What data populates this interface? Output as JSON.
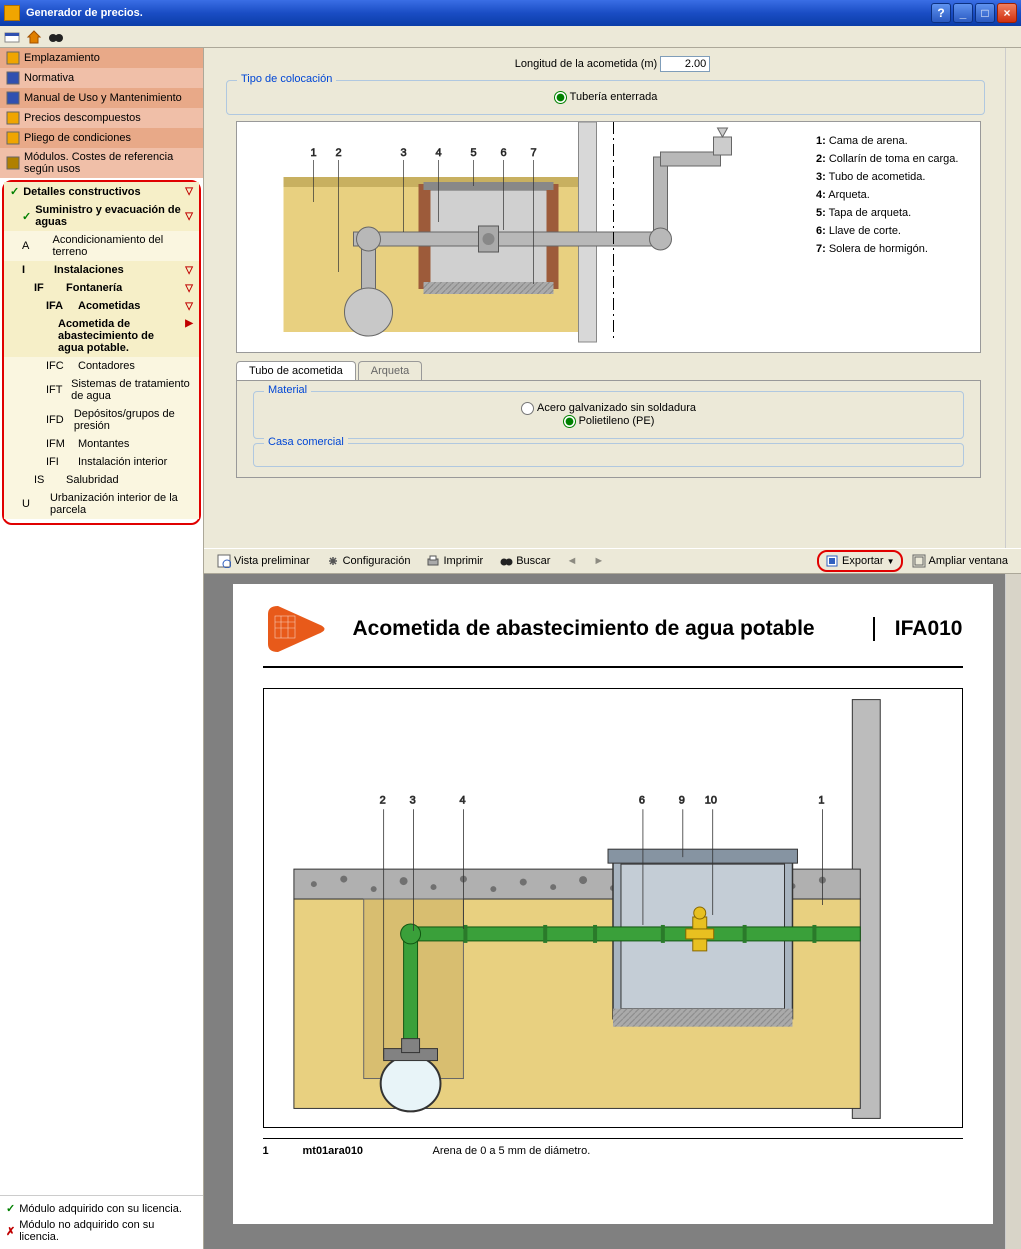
{
  "window": {
    "title": "Generador de precios."
  },
  "sidebar": {
    "top": [
      {
        "label": "Emplazamiento",
        "ico": "#f0a500"
      },
      {
        "label": "Normativa",
        "ico": "#3050b0"
      },
      {
        "label": "Manual de Uso y Mantenimiento",
        "ico": "#3050b0"
      },
      {
        "label": "Precios descompuestos",
        "ico": "#f0a500"
      },
      {
        "label": "Pliego de condiciones",
        "ico": "#f0a500"
      },
      {
        "label": "Módulos. Costes de referencia según usos",
        "ico": "#b08000"
      }
    ],
    "tree": {
      "root": "Detalles constructivos",
      "sub": "Suministro y evacuación de aguas",
      "a": {
        "code": "A",
        "label": "Acondicionamiento del terreno"
      },
      "i": {
        "code": "I",
        "label": "Instalaciones"
      },
      "if": {
        "code": "IF",
        "label": "Fontanería"
      },
      "ifa": {
        "code": "IFA",
        "label": "Acometidas"
      },
      "selected": "Acometida de abastecimiento de agua potable.",
      "items": [
        {
          "code": "IFC",
          "label": "Contadores"
        },
        {
          "code": "IFT",
          "label": "Sistemas de tratamiento de agua"
        },
        {
          "code": "IFD",
          "label": "Depósitos/grupos de presión"
        },
        {
          "code": "IFM",
          "label": "Montantes"
        },
        {
          "code": "IFI",
          "label": "Instalación interior"
        }
      ],
      "is": {
        "code": "IS",
        "label": "Salubridad"
      },
      "u": {
        "code": "U",
        "label": "Urbanización interior de la parcela"
      }
    },
    "footer": {
      "yes": "Módulo adquirido con su licencia.",
      "no": "Módulo no adquirido con su licencia."
    }
  },
  "params": {
    "length_label": "Longitud de la acometida (m)",
    "length_value": "2.00",
    "placement_legend": "Tipo de colocación",
    "placement_option": "Tubería enterrada"
  },
  "legend1": [
    {
      "n": "1",
      "t": "Cama de arena."
    },
    {
      "n": "2",
      "t": "Collarín de toma en carga."
    },
    {
      "n": "3",
      "t": "Tubo de acometida."
    },
    {
      "n": "4",
      "t": "Arqueta."
    },
    {
      "n": "5",
      "t": "Tapa de arqueta."
    },
    {
      "n": "6",
      "t": "Llave de corte."
    },
    {
      "n": "7",
      "t": "Solera de hormigón."
    }
  ],
  "tabs": {
    "t1": "Tubo de acometida",
    "t2": "Arqueta"
  },
  "material": {
    "legend": "Material",
    "opt1": "Acero galvanizado sin soldadura",
    "opt2": "Polietileno (PE)",
    "casa_legend": "Casa comercial"
  },
  "toolbar": {
    "preview": "Vista preliminar",
    "config": "Configuración",
    "print": "Imprimir",
    "search": "Buscar",
    "export": "Exportar",
    "expand": "Ampliar ventana"
  },
  "doc": {
    "title": "Acometida de abastecimiento de agua potable",
    "code": "IFA010",
    "labels": [
      "2",
      "3",
      "4",
      "6",
      "9",
      "10",
      "1"
    ],
    "row1": {
      "n": "1",
      "code": "mt01ara010",
      "desc": "Arena de 0 a 5 mm de diámetro."
    }
  },
  "colors": {
    "sand": "#e8d080",
    "concrete": "#c0c0c0",
    "pipe_gray": "#b0b0b0",
    "pipe_green": "#3aa03a",
    "valve_yellow": "#e8c020",
    "box_gray": "#9aa8b8",
    "hatch": "#808080",
    "gravel": "#909090"
  }
}
